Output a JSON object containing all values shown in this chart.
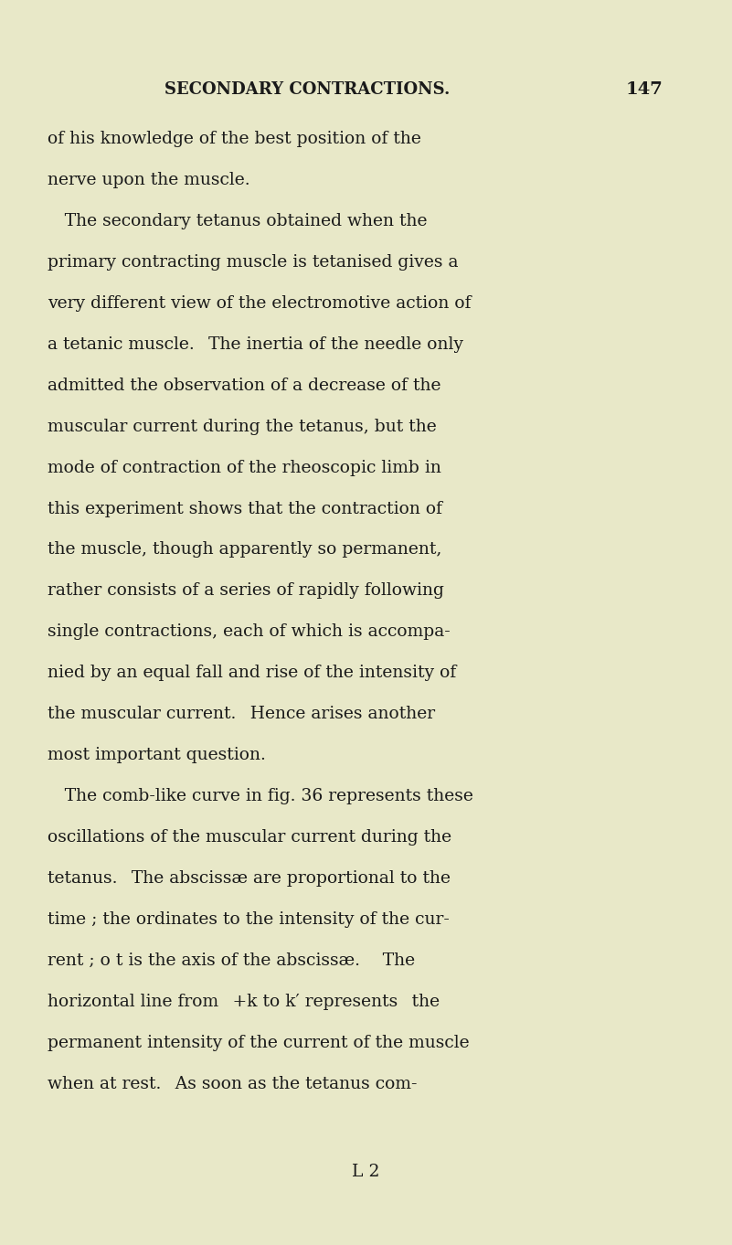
{
  "background_color": "#e8e8c8",
  "header_text": "SECONDARY CONTRACTIONS.",
  "page_number": "147",
  "header_fontsize": 13,
  "body_fontsize": 13.5,
  "footer_text": "L 2",
  "lines": [
    "of his knowledge of the best position of the",
    "nerve upon the muscle.",
    " The secondary tetanus obtained when the",
    "primary contracting muscle is tetanised gives a",
    "very different view of the electromotive action of",
    "a tetanic muscle.  The inertia of the needle only",
    "admitted the observation of a decrease of the",
    "muscular current during the tetanus, but the",
    "mode of contraction of the rheoscopic limb in",
    "this experiment shows that the contraction of",
    "the muscle, though apparently so permanent,",
    "rather consists of a series of rapidly following",
    "single contractions, each of which is accompa-",
    "nied by an equal fall and rise of the intensity of",
    "the muscular current.  Hence arises another",
    "most important question.",
    " The comb-like curve in fig. 36 represents these",
    "oscillations of the muscular current during the",
    "tetanus.  The abscissæ are proportional to the",
    "time ; the ordinates to the intensity of the cur-",
    "rent ; o t is the axis of the abscissæ.   The",
    "horizontal line from  +k to k′ represents  the",
    "permanent intensity of the current of the muscle",
    "when at rest.  As soon as the tetanus com-"
  ],
  "page_width": 8.01,
  "page_height": 13.62
}
